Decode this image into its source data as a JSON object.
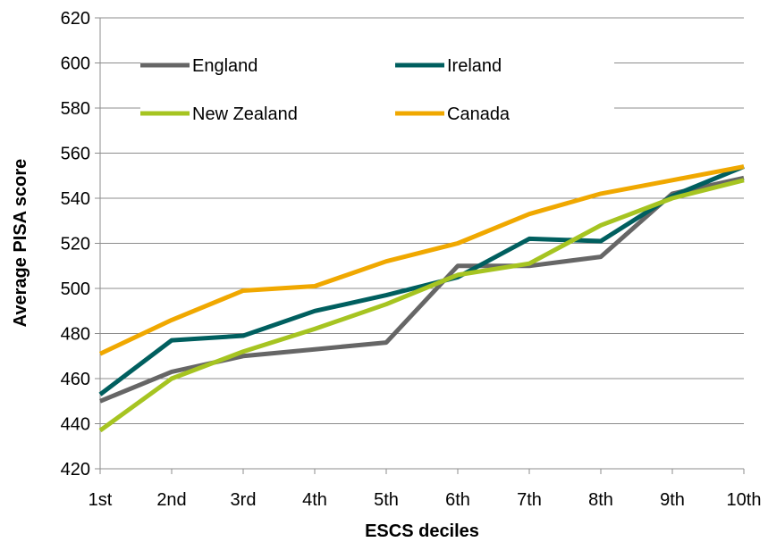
{
  "chart_data": {
    "type": "line",
    "title": "",
    "xlabel": "ESCS deciles",
    "ylabel": "Average PISA score",
    "categories": [
      "1st",
      "2nd",
      "3rd",
      "4th",
      "5th",
      "6th",
      "7th",
      "8th",
      "9th",
      "10th"
    ],
    "ylim": [
      420,
      620
    ],
    "yticks": [
      420,
      440,
      460,
      480,
      500,
      520,
      540,
      560,
      580,
      600,
      620
    ],
    "grid": "horizontal",
    "legend": "top, two columns",
    "series": [
      {
        "name": "England",
        "color": "#666666",
        "values": [
          450,
          463,
          470,
          473,
          476,
          510,
          510,
          514,
          542,
          549
        ]
      },
      {
        "name": "Ireland",
        "color": "#005f5f",
        "values": [
          453,
          477,
          479,
          490,
          497,
          505,
          522,
          521,
          541,
          554
        ]
      },
      {
        "name": "New Zealand",
        "color": "#a6c421",
        "values": [
          437,
          460,
          472,
          482,
          493,
          506,
          511,
          528,
          540,
          548
        ]
      },
      {
        "name": "Canada",
        "color": "#f0a800",
        "values": [
          471,
          486,
          499,
          501,
          512,
          520,
          533,
          542,
          548,
          554
        ]
      }
    ]
  }
}
